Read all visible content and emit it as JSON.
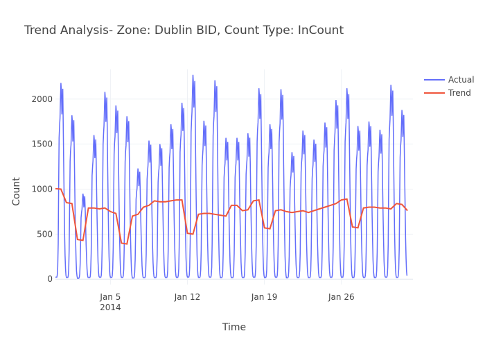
{
  "chart_data": {
    "type": "line",
    "title": "Trend Analysis- Zone: Dublin BID, Count Type: InCount",
    "xlabel": "Time",
    "ylabel": "Count",
    "x_range": [
      "2013-12-31T00:00",
      "2014-02-01T12:00"
    ],
    "ylim": [
      -60,
      2330
    ],
    "y_ticks": [
      0,
      500,
      1000,
      1500,
      2000
    ],
    "x_ticks": [
      {
        "date": "2014-01-05",
        "label": "Jan 5",
        "sublabel": "2014"
      },
      {
        "date": "2014-01-12",
        "label": "Jan 12",
        "sublabel": ""
      },
      {
        "date": "2014-01-19",
        "label": "Jan 19",
        "sublabel": ""
      },
      {
        "date": "2014-01-26",
        "label": "Jan 26",
        "sublabel": ""
      }
    ],
    "grid": true,
    "legend_position": "top-right",
    "series": [
      {
        "name": "Actual",
        "color": "#636efa",
        "kind": "hourly-daily-cycle",
        "start": "2013-12-31T00:00",
        "note_daily_peaks": "approximate daily peak per day from Dec 31",
        "daily_peaks": [
          2180,
          1820,
          950,
          1600,
          2080,
          1930,
          1810,
          1230,
          1540,
          1500,
          1720,
          1960,
          2270,
          1760,
          2210,
          1570,
          1570,
          1620,
          2120,
          1720,
          2110,
          1410,
          1650,
          1550,
          1740,
          1990,
          2120,
          1700,
          1750,
          1660,
          2160,
          1880
        ],
        "daily_min": 0
      },
      {
        "name": "Trend",
        "color": "#ef553b",
        "x": [
          "2013-12-31T00:00",
          "2013-12-31T12:00",
          "2014-01-01T00:00",
          "2014-01-01T12:00",
          "2014-01-02T00:00",
          "2014-01-02T12:00",
          "2014-01-03T00:00",
          "2014-01-03T12:00",
          "2014-01-04T00:00",
          "2014-01-04T12:00",
          "2014-01-05T00:00",
          "2014-01-05T12:00",
          "2014-01-06T00:00",
          "2014-01-06T12:00",
          "2014-01-07T00:00",
          "2014-01-07T12:00",
          "2014-01-08T00:00",
          "2014-01-08T12:00",
          "2014-01-09T00:00",
          "2014-01-09T12:00",
          "2014-01-10T00:00",
          "2014-01-10T12:00",
          "2014-01-11T00:00",
          "2014-01-11T12:00",
          "2014-01-12T00:00",
          "2014-01-12T12:00",
          "2014-01-13T00:00",
          "2014-01-13T12:00",
          "2014-01-14T00:00",
          "2014-01-14T12:00",
          "2014-01-15T00:00",
          "2014-01-15T12:00",
          "2014-01-16T00:00",
          "2014-01-16T12:00",
          "2014-01-17T00:00",
          "2014-01-17T12:00",
          "2014-01-18T00:00",
          "2014-01-18T12:00",
          "2014-01-19T00:00",
          "2014-01-19T12:00",
          "2014-01-20T00:00",
          "2014-01-20T12:00",
          "2014-01-21T00:00",
          "2014-01-21T12:00",
          "2014-01-22T00:00",
          "2014-01-22T12:00",
          "2014-01-23T00:00",
          "2014-01-23T12:00",
          "2014-01-24T00:00",
          "2014-01-24T12:00",
          "2014-01-25T00:00",
          "2014-01-25T12:00",
          "2014-01-26T00:00",
          "2014-01-26T12:00",
          "2014-01-27T00:00",
          "2014-01-27T12:00",
          "2014-01-28T00:00",
          "2014-01-28T12:00",
          "2014-01-29T00:00",
          "2014-01-29T12:00",
          "2014-01-30T00:00",
          "2014-01-30T12:00",
          "2014-01-31T00:00",
          "2014-01-31T12:00",
          "2014-02-01T00:00"
        ],
        "y": [
          1005,
          1000,
          850,
          840,
          440,
          430,
          790,
          790,
          780,
          790,
          750,
          730,
          400,
          390,
          700,
          720,
          800,
          820,
          870,
          860,
          860,
          870,
          880,
          880,
          510,
          500,
          720,
          730,
          730,
          720,
          710,
          700,
          820,
          820,
          760,
          770,
          870,
          880,
          570,
          560,
          760,
          770,
          750,
          740,
          750,
          760,
          740,
          760,
          780,
          800,
          820,
          840,
          880,
          890,
          580,
          570,
          790,
          800,
          800,
          790,
          790,
          780,
          840,
          830,
          760
        ]
      }
    ]
  }
}
